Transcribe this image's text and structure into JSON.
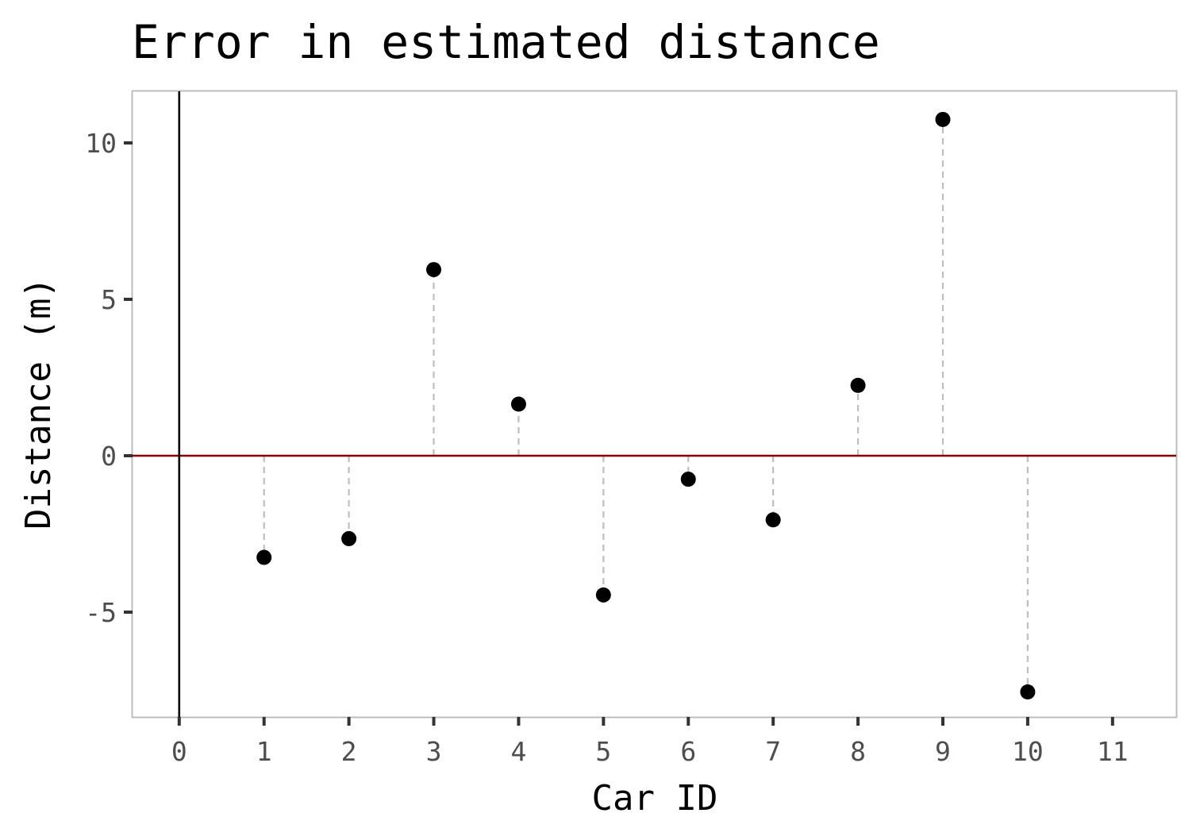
{
  "chart_data": {
    "type": "scatter",
    "title": "Error in estimated distance",
    "xlabel": "Car ID",
    "ylabel": "Distance (m)",
    "x": [
      1,
      2,
      3,
      4,
      5,
      6,
      7,
      8,
      9,
      10
    ],
    "y": [
      -3.25,
      -2.65,
      5.95,
      1.65,
      -4.45,
      -0.75,
      -2.05,
      2.25,
      10.75,
      -7.55
    ],
    "xlim": [
      -0.55,
      11.75
    ],
    "ylim": [
      -8.35,
      11.65
    ],
    "xticks": [
      0,
      1,
      2,
      3,
      4,
      5,
      6,
      7,
      8,
      9,
      10,
      11
    ],
    "yticks": [
      -5,
      0,
      5,
      10
    ],
    "xtick_labels": [
      "0",
      "1",
      "2",
      "3",
      "4",
      "5",
      "6",
      "7",
      "8",
      "9",
      "10",
      "11"
    ],
    "ytick_labels": [
      "-5",
      "0",
      "5",
      "10"
    ],
    "reference_lines": [
      {
        "orientation": "horizontal",
        "value": 0,
        "color": "#8b0000"
      },
      {
        "orientation": "vertical",
        "value": 0,
        "color": "#000000"
      }
    ],
    "segments": "dashed drop lines from each point to y = 0",
    "segment_color": "#bebebe",
    "point_color": "#000000",
    "grid": false,
    "legend": "none"
  }
}
